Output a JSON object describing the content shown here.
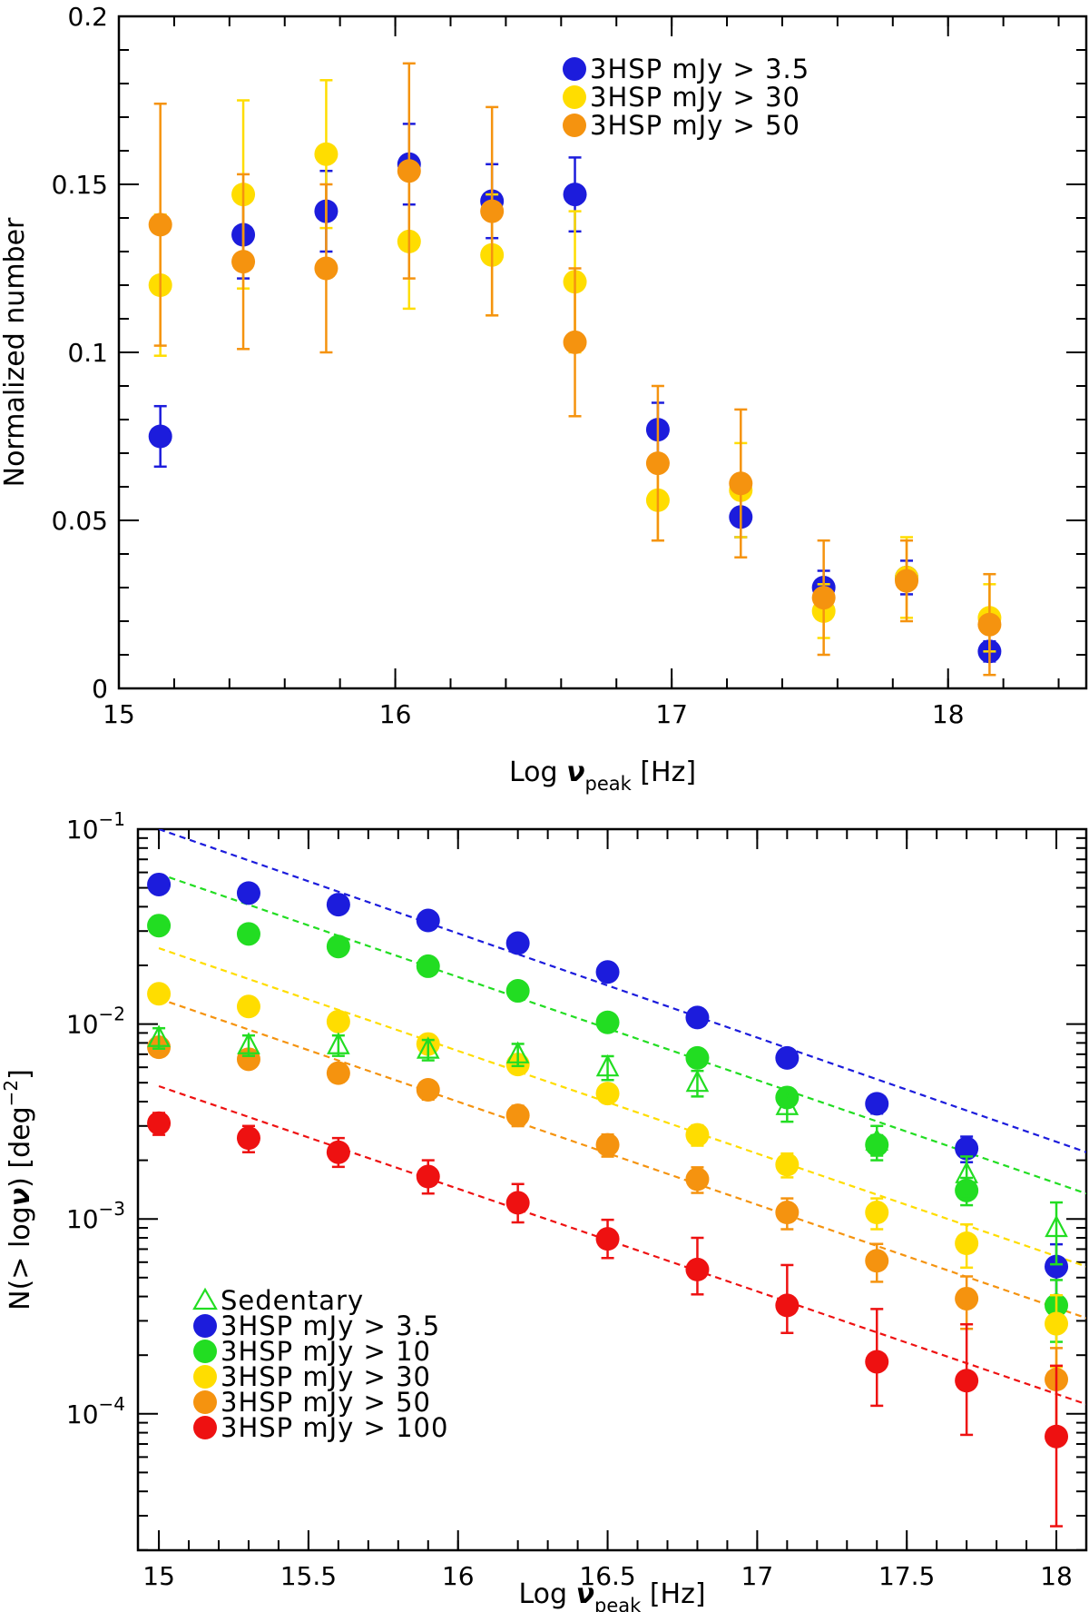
{
  "chart_data": [
    {
      "type": "scatter",
      "ylabel": "Normalized number",
      "xlabel": {
        "prefix": "Log",
        "symbol": "ν",
        "subscript": "peak",
        "unit": "[Hz]"
      },
      "xlim": [
        15,
        18.5
      ],
      "ylim": [
        0,
        0.2
      ],
      "x_ticks": [
        {
          "value": 15,
          "label": "15"
        },
        {
          "value": 16,
          "label": "16"
        },
        {
          "value": 17,
          "label": "17"
        },
        {
          "value": 18,
          "label": "18"
        }
      ],
      "y_ticks": [
        {
          "value": 0,
          "label": "0"
        },
        {
          "value": 0.05,
          "label": "0.05"
        },
        {
          "value": 0.1,
          "label": "0.1"
        },
        {
          "value": 0.15,
          "label": "0.15"
        },
        {
          "value": 0.2,
          "label": "0.2"
        }
      ],
      "legend_position": "top-right",
      "series": [
        {
          "name": "3HSP  mJy  >  3.5",
          "color": "#1c1cdc",
          "x": [
            15.15,
            15.45,
            15.75,
            16.05,
            16.35,
            16.65,
            16.95,
            17.25,
            17.55,
            17.85,
            18.15
          ],
          "y": [
            0.075,
            0.135,
            0.142,
            0.156,
            0.145,
            0.147,
            0.077,
            0.051,
            0.03,
            0.033,
            0.011
          ],
          "err": [
            0.009,
            0.013,
            0.012,
            0.012,
            0.011,
            0.011,
            0.008,
            0.006,
            0.005,
            0.005,
            0.003
          ]
        },
        {
          "name": "3HSP  mJy  >  30",
          "color": "#ffdd00",
          "x": [
            15.15,
            15.45,
            15.75,
            16.05,
            16.35,
            16.65,
            16.95,
            17.25,
            17.55,
            17.85,
            18.15
          ],
          "y": [
            0.12,
            0.147,
            0.159,
            0.133,
            0.129,
            0.121,
            0.056,
            0.059,
            0.023,
            0.033,
            0.021
          ],
          "err": [
            0.021,
            0.028,
            0.022,
            0.02,
            0.018,
            0.021,
            0.012,
            0.014,
            0.008,
            0.012,
            0.01
          ]
        },
        {
          "name": "3HSP  mJy  >  50",
          "color": "#f5930f",
          "x": [
            15.15,
            15.45,
            15.75,
            16.05,
            16.35,
            16.65,
            16.95,
            17.25,
            17.55,
            17.85,
            18.15
          ],
          "y": [
            0.138,
            0.127,
            0.125,
            0.154,
            0.142,
            0.103,
            0.067,
            0.061,
            0.027,
            0.032,
            0.019
          ],
          "err": [
            0.036,
            0.026,
            0.025,
            0.032,
            0.031,
            0.022,
            0.023,
            0.022,
            0.017,
            0.012,
            0.015
          ]
        }
      ]
    },
    {
      "type": "scatter",
      "ylabel": {
        "text": "N(> log",
        "symbol": "ν",
        "close": ")",
        "unit_prefix": "[deg",
        "unit_exp": "−2",
        "unit_suffix": "]"
      },
      "xlabel": {
        "prefix": "Log",
        "symbol": "ν",
        "subscript": "peak",
        "unit": "[Hz]"
      },
      "y_scale": "log",
      "xlim": [
        14.93,
        18.1
      ],
      "ylim_log10": [
        -4.7,
        -1
      ],
      "x_ticks": [
        {
          "value": 15,
          "label": "15"
        },
        {
          "value": 15.5,
          "label": "15.5"
        },
        {
          "value": 16,
          "label": "16"
        },
        {
          "value": 16.5,
          "label": "16.5"
        },
        {
          "value": 17,
          "label": "17"
        },
        {
          "value": 17.5,
          "label": "17.5"
        },
        {
          "value": 18,
          "label": "18"
        }
      ],
      "y_ticks": [
        {
          "value_log10": -1,
          "base": "10",
          "exp": "−1"
        },
        {
          "value_log10": -2,
          "base": "10",
          "exp": "−2"
        },
        {
          "value_log10": -3,
          "base": "10",
          "exp": "−3"
        },
        {
          "value_log10": -4,
          "base": "10",
          "exp": "−4"
        }
      ],
      "legend_position": "bottom-left",
      "x": [
        15.0,
        15.3,
        15.6,
        15.9,
        16.2,
        16.5,
        16.8,
        17.1,
        17.4,
        17.7,
        18.0
      ],
      "series": [
        {
          "name": "Sedentary",
          "color": "#22dd22",
          "marker": "open-triangle",
          "y": [
            0.0085,
            0.0078,
            0.0078,
            0.0074,
            0.007,
            0.006,
            0.005,
            0.0038,
            0.0025,
            0.0017,
            0.0009
          ],
          "err_frac": [
            0.12,
            0.12,
            0.12,
            0.12,
            0.13,
            0.14,
            0.15,
            0.17,
            0.2,
            0.23,
            0.35
          ]
        },
        {
          "name": "3HSP  mJy  >  3.5",
          "color": "#1c1cdc",
          "marker": "circle",
          "y": [
            0.052,
            0.047,
            0.041,
            0.034,
            0.026,
            0.0185,
            0.0108,
            0.0067,
            0.0039,
            0.0023,
            0.00057
          ],
          "err_frac": [
            0.04,
            0.04,
            0.04,
            0.05,
            0.05,
            0.06,
            0.07,
            0.09,
            0.11,
            0.15,
            0.3
          ],
          "fit": {
            "x": [
              15.0,
              18.1
            ],
            "y": [
              0.1,
              0.0022
            ]
          }
        },
        {
          "name": "3HSP  mJy  >  10",
          "color": "#22dd22",
          "marker": "circle",
          "y": [
            0.032,
            0.029,
            0.025,
            0.0198,
            0.0148,
            0.0102,
            0.0067,
            0.0042,
            0.0024,
            0.0014,
            0.00036
          ],
          "err_frac": [
            0.05,
            0.05,
            0.05,
            0.06,
            0.06,
            0.07,
            0.08,
            0.1,
            0.12,
            0.16,
            0.35
          ],
          "fit": {
            "x": [
              15.0,
              18.1
            ],
            "y": [
              0.059,
              0.00135
            ]
          }
        },
        {
          "name": "3HSP  mJy  >  30",
          "color": "#ffdd00",
          "marker": "circle",
          "y": [
            0.0143,
            0.0123,
            0.0103,
            0.0079,
            0.0062,
            0.0044,
            0.0027,
            0.0019,
            0.00108,
            0.00075,
            0.00029
          ],
          "err_frac": [
            0.07,
            0.07,
            0.08,
            0.08,
            0.09,
            0.1,
            0.12,
            0.14,
            0.18,
            0.25,
            0.4
          ],
          "fit": {
            "x": [
              15.0,
              18.1
            ],
            "y": [
              0.0245,
              0.00057
            ]
          }
        },
        {
          "name": "3HSP  mJy  >  50",
          "color": "#f5930f",
          "marker": "circle",
          "y": [
            0.0076,
            0.0066,
            0.0056,
            0.0046,
            0.0034,
            0.0024,
            0.0016,
            0.00108,
            0.00061,
            0.00039,
            0.00015
          ],
          "err_frac": [
            0.1,
            0.1,
            0.1,
            0.11,
            0.12,
            0.13,
            0.15,
            0.18,
            0.22,
            0.3,
            0.45
          ],
          "fit": {
            "x": [
              15.0,
              18.1
            ],
            "y": [
              0.0135,
              0.00031
            ]
          }
        },
        {
          "name": "3HSP  mJy  >  100",
          "color": "#ee1111",
          "marker": "circle",
          "y": [
            0.0031,
            0.0026,
            0.0022,
            0.00165,
            0.00121,
            0.00079,
            0.00055,
            0.00036,
            0.000185,
            0.000148,
            7.65e-05
          ],
          "err_lo": [
            0.0004,
            0.0004,
            0.00035,
            0.0003,
            0.00025,
            0.00016,
            0.00014,
            0.0001,
            7.5e-05,
            7e-05,
            5e-05
          ],
          "err_hi": [
            0.0004,
            0.0004,
            0.0004,
            0.00035,
            0.0003,
            0.0002,
            0.00025,
            0.00022,
            0.00016,
            0.00014,
            0.0001
          ],
          "fit": {
            "x": [
              15.0,
              18.1
            ],
            "y": [
              0.0048,
              0.000112
            ]
          }
        }
      ]
    }
  ]
}
